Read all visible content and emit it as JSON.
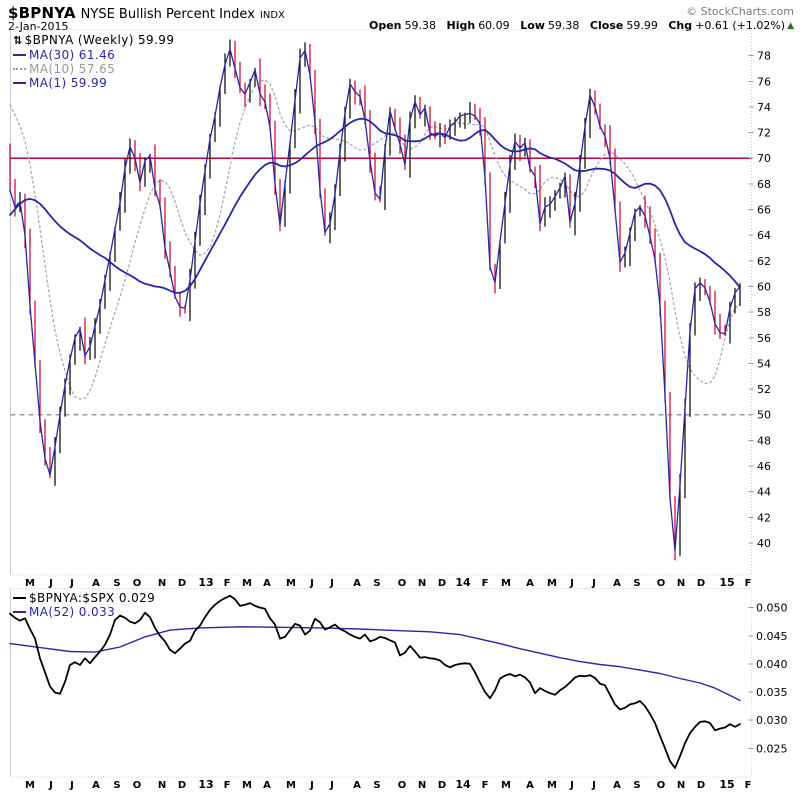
{
  "header": {
    "symbol": "$BPNYA",
    "title": "NYSE Bullish Percent Index",
    "exchange": "INDX",
    "date": "2-Jan-2015",
    "copyright": "© StockCharts.com",
    "quote": {
      "open_label": "Open",
      "open_value": "59.38",
      "high_label": "High",
      "high_value": "60.09",
      "low_label": "Low",
      "low_value": "59.38",
      "close_label": "Close",
      "close_value": "59.99",
      "chg_label": "Chg",
      "chg_value": "+0.61 (+1.02%)",
      "chg_direction_icon": "▲",
      "chg_color": "#1f7a1f"
    }
  },
  "legend_main": {
    "items": [
      {
        "icon": "⇅",
        "label": "$BPNYA (Weekly) 59.99",
        "color": "#000000",
        "style": "none"
      },
      {
        "label": "MA(30) 61.46",
        "color": "#2727a3",
        "style": "solid"
      },
      {
        "label": "MA(10) 57.65",
        "color": "#999999",
        "style": "dotted"
      },
      {
        "label": "MA(1) 59.99",
        "color": "#2727a3",
        "style": "solid"
      }
    ]
  },
  "legend_lower": {
    "items": [
      {
        "label": "$BPNYA:$SPX 0.029",
        "color": "#000000",
        "style": "solid"
      },
      {
        "label": "MA(52) 0.033",
        "color": "#2727a3",
        "style": "solid"
      }
    ]
  },
  "colors": {
    "up_bar": "#000000",
    "down_bar": "#c80032",
    "ma_navy": "#2727a3",
    "ma_dotted_gray": "#aaaaaa",
    "hline_70": "#b00038",
    "dashed_50": "#999999",
    "border": "#cccccc",
    "tick": "#999999",
    "axis_text": "#000000"
  },
  "chart_data": [
    {
      "type": "candlestick",
      "title": "$BPNYA (Weekly)",
      "last_close": 59.99,
      "ylim": [
        37.5,
        80.0
      ],
      "yticks": [
        78,
        76,
        74,
        72,
        70,
        68,
        66,
        64,
        62,
        60,
        58,
        56,
        54,
        52,
        50,
        48,
        46,
        44,
        42,
        40
      ],
      "hlines": [
        {
          "value": 70,
          "style": "solid",
          "color": "#b00038",
          "name": "overlay-hline-70"
        },
        {
          "value": 50,
          "style": "dashed",
          "color": "#999999",
          "name": "gridline-50"
        }
      ],
      "overlays": [
        {
          "name": "MA(30)",
          "period": 30,
          "value": 61.46
        },
        {
          "name": "MA(10)",
          "period": 10,
          "value": 57.65
        },
        {
          "name": "MA(1)",
          "period": 1,
          "value": 59.99
        }
      ],
      "x_start": 10,
      "x_step": 5,
      "x_months": [
        [
          "M",
          30
        ],
        [
          "J",
          51
        ],
        [
          "J",
          72
        ],
        [
          "A",
          96
        ],
        [
          "S",
          117
        ],
        [
          "O",
          137
        ],
        [
          "N",
          162
        ],
        [
          "D",
          182
        ],
        [
          "13",
          206
        ],
        [
          "F",
          227
        ],
        [
          "M",
          247
        ],
        [
          "A",
          267
        ],
        [
          "M",
          291
        ],
        [
          "J",
          312
        ],
        [
          "J",
          332
        ],
        [
          "A",
          357
        ],
        [
          "S",
          377
        ],
        [
          "O",
          402
        ],
        [
          "N",
          422
        ],
        [
          "D",
          442
        ],
        [
          "14",
          463
        ],
        [
          "F",
          485
        ],
        [
          "M",
          506
        ],
        [
          "A",
          530
        ],
        [
          "M",
          552
        ],
        [
          "J",
          572
        ],
        [
          "J",
          594
        ],
        [
          "A",
          617
        ],
        [
          "S",
          637
        ],
        [
          "O",
          661
        ],
        [
          "N",
          681
        ],
        [
          "D",
          701
        ],
        [
          "15",
          727
        ],
        [
          "F",
          748
        ]
      ],
      "pre_history": [
        52,
        53,
        54,
        55,
        56,
        57,
        58,
        59,
        60,
        61,
        62,
        62,
        63,
        63,
        64,
        64,
        65,
        65,
        66,
        67,
        72,
        74,
        75,
        76,
        77,
        77,
        76,
        75,
        73,
        71
      ],
      "weekly_close": [
        67.5,
        66.2,
        66.6,
        64.0,
        58.5,
        54.0,
        49.5,
        46.6,
        45.3,
        47.5,
        50.0,
        52.3,
        54.3,
        56.0,
        56.7,
        54.6,
        55.3,
        56.9,
        58.5,
        60.5,
        62.4,
        64.5,
        66.5,
        69.2,
        70.9,
        70.0,
        68.1,
        69.8,
        70.2,
        67.6,
        66.3,
        63.0,
        61.2,
        59.2,
        58.4,
        58.3,
        60.5,
        63.5,
        66.5,
        69.0,
        71.5,
        73.3,
        75.5,
        77.3,
        78.5,
        77.0,
        75.5,
        75.0,
        75.9,
        76.9,
        75.0,
        74.4,
        72.4,
        68.0,
        64.8,
        68.0,
        71.2,
        74.5,
        77.8,
        78.4,
        76.5,
        72.8,
        67.5,
        64.2,
        64.9,
        67.2,
        70.5,
        73.5,
        75.8,
        75.2,
        74.8,
        73.0,
        69.8,
        67.3,
        66.8,
        70.7,
        73.7,
        72.3,
        71.1,
        69.5,
        73.0,
        74.4,
        73.4,
        73.9,
        72.0,
        71.7,
        72.0,
        71.6,
        72.5,
        72.8,
        73.3,
        73.4,
        73.5,
        73.3,
        72.7,
        68.5,
        61.5,
        60.3,
        63.5,
        66.5,
        69.5,
        71.3,
        70.8,
        71.2,
        69.2,
        68.6,
        64.9,
        66.2,
        66.4,
        67.0,
        67.7,
        68.6,
        65.0,
        66.5,
        69.5,
        72.5,
        74.9,
        74.0,
        72.5,
        71.7,
        70.0,
        66.0,
        61.9,
        62.6,
        64.2,
        65.8,
        66.2,
        65.5,
        63.9,
        62.1,
        58.5,
        51.5,
        43.5,
        39.4,
        44.5,
        50.5,
        56.5,
        59.8,
        60.3,
        59.9,
        58.8,
        57.1,
        56.4,
        56.3,
        58.3,
        59.5,
        59.99
      ]
    },
    {
      "type": "line",
      "title": "$BPNYA:$SPX",
      "last_value": 0.029,
      "ma52_last": 0.033,
      "ylim": [
        0.0199,
        0.0534
      ],
      "yticks": [
        {
          "v": 0.05,
          "label": "0.050"
        },
        {
          "v": 0.045,
          "label": "0.045"
        },
        {
          "v": 0.04,
          "label": "0.040"
        },
        {
          "v": 0.035,
          "label": "0.035"
        },
        {
          "v": 0.03,
          "label": "0.030"
        },
        {
          "v": 0.025,
          "label": "0.025"
        }
      ],
      "x_start": 10,
      "x_step": 5,
      "x_months": [
        [
          "M",
          30
        ],
        [
          "J",
          51
        ],
        [
          "J",
          72
        ],
        [
          "A",
          96
        ],
        [
          "S",
          117
        ],
        [
          "O",
          137
        ],
        [
          "N",
          162
        ],
        [
          "D",
          182
        ],
        [
          "13",
          206
        ],
        [
          "F",
          227
        ],
        [
          "M",
          247
        ],
        [
          "A",
          267
        ],
        [
          "M",
          291
        ],
        [
          "J",
          312
        ],
        [
          "J",
          332
        ],
        [
          "A",
          357
        ],
        [
          "S",
          377
        ],
        [
          "O",
          402
        ],
        [
          "N",
          422
        ],
        [
          "D",
          442
        ],
        [
          "14",
          463
        ],
        [
          "F",
          485
        ],
        [
          "M",
          506
        ],
        [
          "A",
          530
        ],
        [
          "M",
          552
        ],
        [
          "J",
          572
        ],
        [
          "J",
          594
        ],
        [
          "A",
          617
        ],
        [
          "S",
          637
        ],
        [
          "O",
          661
        ],
        [
          "N",
          681
        ],
        [
          "D",
          701
        ],
        [
          "15",
          727
        ],
        [
          "F",
          748
        ]
      ],
      "ratio_values": [
        0.0489,
        0.0482,
        0.0477,
        0.0481,
        0.0462,
        0.0445,
        0.041,
        0.0385,
        0.036,
        0.0349,
        0.0347,
        0.0368,
        0.0398,
        0.0403,
        0.0398,
        0.041,
        0.0401,
        0.0412,
        0.0422,
        0.0434,
        0.0452,
        0.0478,
        0.0486,
        0.0482,
        0.0475,
        0.0472,
        0.0478,
        0.0491,
        0.0483,
        0.0464,
        0.045,
        0.044,
        0.0425,
        0.0419,
        0.0427,
        0.0436,
        0.0441,
        0.0459,
        0.0468,
        0.0483,
        0.0496,
        0.0505,
        0.0512,
        0.0517,
        0.0521,
        0.0515,
        0.0503,
        0.0505,
        0.0508,
        0.0503,
        0.05,
        0.0498,
        0.0481,
        0.047,
        0.0445,
        0.0448,
        0.046,
        0.0471,
        0.0468,
        0.0452,
        0.0459,
        0.048,
        0.0474,
        0.0461,
        0.0465,
        0.047,
        0.0462,
        0.0458,
        0.0452,
        0.0448,
        0.0445,
        0.0452,
        0.044,
        0.0443,
        0.0448,
        0.0446,
        0.0442,
        0.0438,
        0.0415,
        0.042,
        0.0432,
        0.0422,
        0.0411,
        0.0412,
        0.041,
        0.0409,
        0.0406,
        0.0398,
        0.0394,
        0.0398,
        0.04,
        0.0401,
        0.04,
        0.0385,
        0.0367,
        0.035,
        0.0339,
        0.0353,
        0.0374,
        0.0379,
        0.0382,
        0.0378,
        0.0381,
        0.0376,
        0.0367,
        0.0348,
        0.0357,
        0.0352,
        0.0348,
        0.0345,
        0.0353,
        0.0359,
        0.0367,
        0.0376,
        0.0379,
        0.0378,
        0.038,
        0.0375,
        0.0365,
        0.0362,
        0.0345,
        0.0328,
        0.0319,
        0.0322,
        0.0328,
        0.033,
        0.0334,
        0.0325,
        0.0311,
        0.0295,
        0.0272,
        0.025,
        0.0227,
        0.0215,
        0.0236,
        0.0259,
        0.0277,
        0.0288,
        0.0297,
        0.0298,
        0.0295,
        0.0282,
        0.0285,
        0.0287,
        0.0293,
        0.0288,
        0.0293
      ],
      "ma52_points": [
        [
          10,
          0.0436
        ],
        [
          40,
          0.0429
        ],
        [
          70,
          0.0422
        ],
        [
          95,
          0.0421
        ],
        [
          120,
          0.043
        ],
        [
          145,
          0.0448
        ],
        [
          170,
          0.046
        ],
        [
          200,
          0.0464
        ],
        [
          240,
          0.0466
        ],
        [
          280,
          0.0465
        ],
        [
          320,
          0.0464
        ],
        [
          360,
          0.0462
        ],
        [
          400,
          0.0459
        ],
        [
          430,
          0.0457
        ],
        [
          460,
          0.0452
        ],
        [
          480,
          0.0444
        ],
        [
          500,
          0.0436
        ],
        [
          520,
          0.0427
        ],
        [
          540,
          0.0419
        ],
        [
          560,
          0.0411
        ],
        [
          580,
          0.0404
        ],
        [
          600,
          0.0399
        ],
        [
          620,
          0.0395
        ],
        [
          640,
          0.0389
        ],
        [
          660,
          0.0383
        ],
        [
          680,
          0.0374
        ],
        [
          700,
          0.0366
        ],
        [
          715,
          0.0357
        ],
        [
          730,
          0.0344
        ],
        [
          740,
          0.0335
        ]
      ]
    }
  ]
}
